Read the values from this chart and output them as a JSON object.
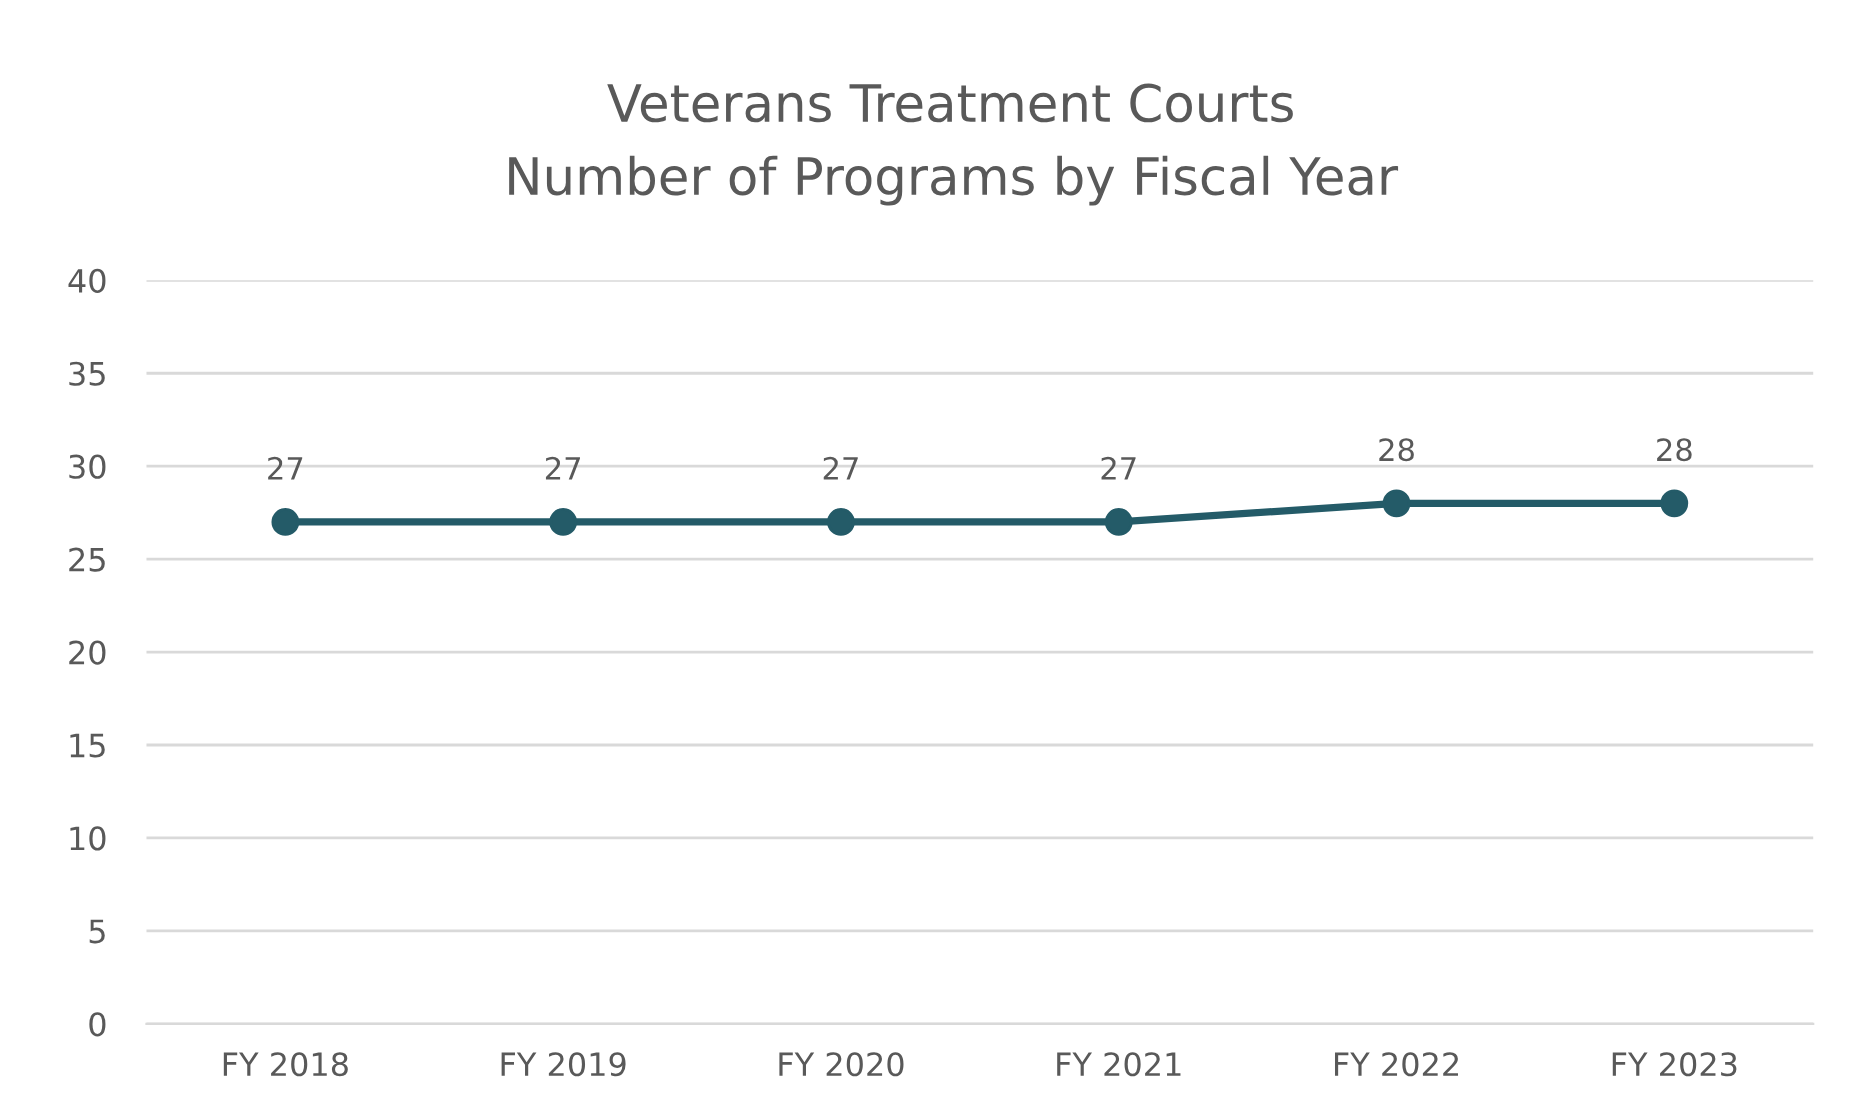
{
  "chart_data": {
    "type": "line",
    "title": "Veterans Treatment Courts\nNumber of Programs by Fiscal Year",
    "categories": [
      "FY 2018",
      "FY 2019",
      "FY 2020",
      "FY 2021",
      "FY 2022",
      "FY 2023"
    ],
    "series": [
      {
        "color": "#245b68",
        "values": [
          27,
          27,
          27,
          27,
          28,
          28
        ]
      }
    ],
    "ylim": [
      0,
      40
    ],
    "yticks": [
      0,
      5,
      10,
      15,
      20,
      25,
      30,
      35,
      40
    ],
    "grid": "y",
    "marker": "circle",
    "line_style": "solid",
    "data_labels": true
  }
}
